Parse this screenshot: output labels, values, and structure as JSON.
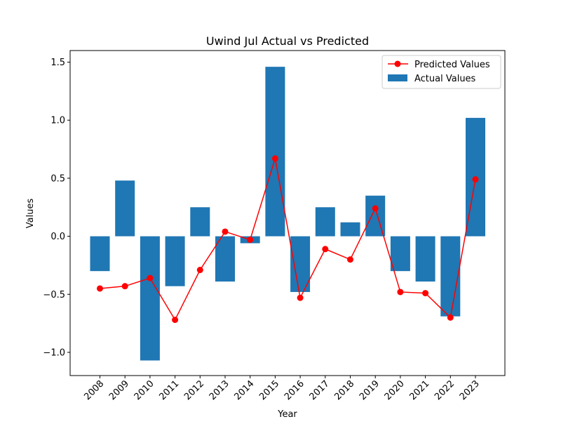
{
  "chart_data": {
    "type": "bar",
    "title": "Uwind Jul Actual vs Predicted",
    "xlabel": "Year",
    "ylabel": "Values",
    "categories": [
      "2008",
      "2009",
      "2010",
      "2011",
      "2012",
      "2013",
      "2014",
      "2015",
      "2016",
      "2017",
      "2018",
      "2019",
      "2020",
      "2021",
      "2022",
      "2023"
    ],
    "series": [
      {
        "name": "Actual Values",
        "mark": "bar",
        "color": "#1f77b4",
        "values": [
          -0.3,
          0.48,
          -1.07,
          -0.43,
          0.25,
          -0.39,
          -0.06,
          1.46,
          -0.48,
          0.25,
          0.12,
          0.35,
          -0.3,
          -0.39,
          -0.69,
          1.02
        ]
      },
      {
        "name": "Predicted Values",
        "mark": "line",
        "color": "#ff0000",
        "values": [
          -0.45,
          -0.43,
          -0.36,
          -0.72,
          -0.29,
          0.04,
          -0.03,
          0.67,
          -0.53,
          -0.11,
          -0.2,
          0.24,
          -0.48,
          -0.49,
          -0.7,
          0.49
        ]
      }
    ],
    "ylim": [
      -1.2,
      1.6
    ],
    "yticks": [
      "−1.0",
      "−0.5",
      "0.0",
      "0.5",
      "1.0",
      "1.5"
    ],
    "ytick_values": [
      -1.0,
      -0.5,
      0.0,
      0.5,
      1.0,
      1.5
    ],
    "grid": false,
    "legend_position": "upper right"
  }
}
